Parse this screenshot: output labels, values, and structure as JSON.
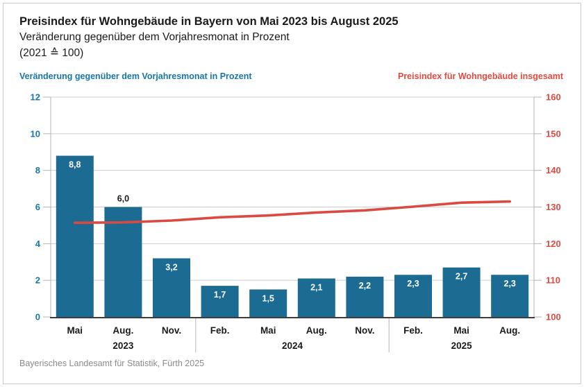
{
  "source": "Bayerisches Landesamt für Statistik, Fürth 2025",
  "chart_data": {
    "type": "bar+line",
    "title": "Preisindex für Wohngebäude in Bayern von Mai 2023 bis August 2025",
    "subtitle": "Veränderung gegenüber dem Vorjahresmonat in Prozent",
    "base_note": "(2021 ≙ 100)",
    "categories": [
      "Mai",
      "Aug.",
      "Nov.",
      "Feb.",
      "Mai",
      "Aug.",
      "Nov.",
      "Feb.",
      "Mai",
      "Aug."
    ],
    "year_groups": [
      {
        "label": "2023",
        "span": 3
      },
      {
        "label": "2024",
        "span": 4
      },
      {
        "label": "2025",
        "span": 3
      }
    ],
    "series": [
      {
        "name": "Veränderung gegenüber dem Vorjahresmonat in Prozent",
        "type": "bar",
        "axis": "left",
        "color": "#1c6b93",
        "values": [
          8.8,
          6.0,
          3.2,
          1.7,
          1.5,
          2.1,
          2.2,
          2.3,
          2.7,
          2.3
        ],
        "labels": [
          "8,8",
          "6,0",
          "3,2",
          "1,7",
          "1,5",
          "2,1",
          "2,2",
          "2,3",
          "2,7",
          "2,3"
        ],
        "label_outside": [
          false,
          true,
          false,
          false,
          false,
          false,
          false,
          false,
          false,
          false
        ]
      },
      {
        "name": "Preisindex für Wohngebäude insgesamt",
        "type": "line",
        "axis": "right",
        "color": "#da4a42",
        "values": [
          125.7,
          125.8,
          126.3,
          127.2,
          127.7,
          128.5,
          129.1,
          130.1,
          131.2,
          131.5
        ]
      }
    ],
    "left_axis": {
      "title": "Veränderung gegenüber dem Vorjahresmonat in Prozent",
      "color": "#1577a9",
      "min": 0,
      "max": 12,
      "ticks": [
        0,
        2,
        4,
        6,
        8,
        10,
        12
      ]
    },
    "right_axis": {
      "title": "Preisindex für Wohngebäude insgesamt",
      "color": "#e2493f",
      "min": 100,
      "max": 160,
      "ticks": [
        100,
        110,
        120,
        130,
        140,
        150,
        160
      ]
    },
    "grid": true,
    "legend_position": "top"
  }
}
